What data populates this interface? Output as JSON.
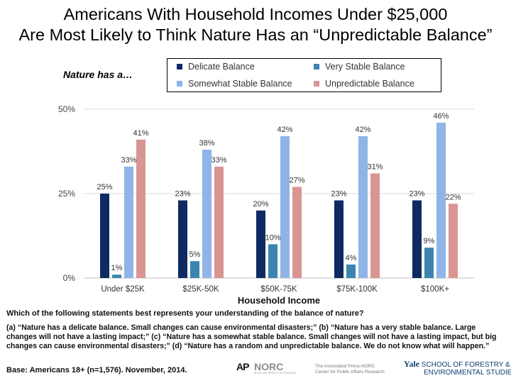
{
  "title_line1": "Americans With Household Incomes Under $25,000",
  "title_line2": "Are Most Likely to Think Nature Has an “Unpredictable Balance”",
  "chart_data": {
    "type": "bar",
    "title": "Nature has a…",
    "xlabel": "Household Income",
    "ylabel": "",
    "ylim": [
      0,
      50
    ],
    "yticks": [
      {
        "value": 0,
        "label": "0%"
      },
      {
        "value": 25,
        "label": "25%"
      },
      {
        "value": 50,
        "label": "50%"
      }
    ],
    "categories": [
      "Under $25K",
      "$25K-50K",
      "$50K-75K",
      "$75K-100K",
      "$100K+"
    ],
    "series": [
      {
        "name": "Delicate Balance",
        "color": "#0f2a63",
        "values": [
          25,
          23,
          20,
          23,
          23
        ]
      },
      {
        "name": "Very Stable Balance",
        "color": "#3b84b0",
        "values": [
          1,
          5,
          10,
          4,
          9
        ]
      },
      {
        "name": "Somewhat Stable Balance",
        "color": "#8fb4e8",
        "values": [
          33,
          38,
          42,
          42,
          46
        ]
      },
      {
        "name": "Unpredictable Balance",
        "color": "#d99592",
        "values": [
          41,
          33,
          27,
          31,
          22
        ]
      }
    ],
    "value_suffix": "%",
    "legend": "top"
  },
  "question": "Which of the following statements best represents your understanding of the balance of nature?",
  "options": "(a) “Nature has a delicate balance. Small changes can cause environmental disasters;” (b) “Nature has a very stable balance. Large changes will not have a lasting impact;” (c) “Nature has a somewhat stable balance. Small changes will not have a lasting impact, but big changes can cause environmental disasters;” (d) “Nature has a random and unpredictable balance. We do not know what will happen.”",
  "base": "Base: Americans 18+ (n=1,576). November, 2014.",
  "logos": {
    "ap": "AP",
    "norc": "NORC",
    "norc_sub": "at the UNIVERSITY of CHICAGO",
    "center_line1": "The Associated Press-NORC",
    "center_line2": "Center for Public Affairs Research",
    "yale": "Yale",
    "yale_line1": "SCHOOL OF FORESTRY &",
    "yale_line2": "ENVIRONMENTAL STUDIES"
  }
}
